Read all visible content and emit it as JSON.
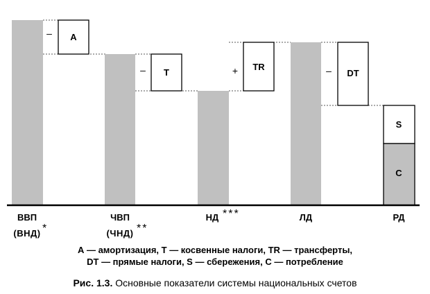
{
  "diagram": {
    "box_labels": {
      "a": "A",
      "t": "T",
      "tr": "TR",
      "dt": "DT",
      "s": "S",
      "c": "C"
    },
    "operators": {
      "minus_a": "–",
      "minus_t": "–",
      "plus_tr": "+",
      "minus_dt": "–"
    },
    "axis_labels": {
      "vvp": "ВВП",
      "vnd": "(ВНД)",
      "vvp_mark": "*",
      "chvp": "ЧВП",
      "chnd": "(ЧНД)",
      "chvp_mark": "**",
      "nd": "НД",
      "nd_mark": "***",
      "ld": "ЛД",
      "rd": "РД"
    },
    "colors": {
      "bar_fill": "#c0c0c0",
      "box_fill": "#ffffff",
      "stroke": "#000000"
    }
  },
  "legend": {
    "line1": "А — амортизация, Т — косвенные налоги, TR — трансферты,",
    "line2": "DT — прямые налоги, S — сбережения, С — потребление"
  },
  "caption": {
    "figure_number": "Рис. 1.3.",
    "text": "Основные показатели системы национальных счетов"
  }
}
